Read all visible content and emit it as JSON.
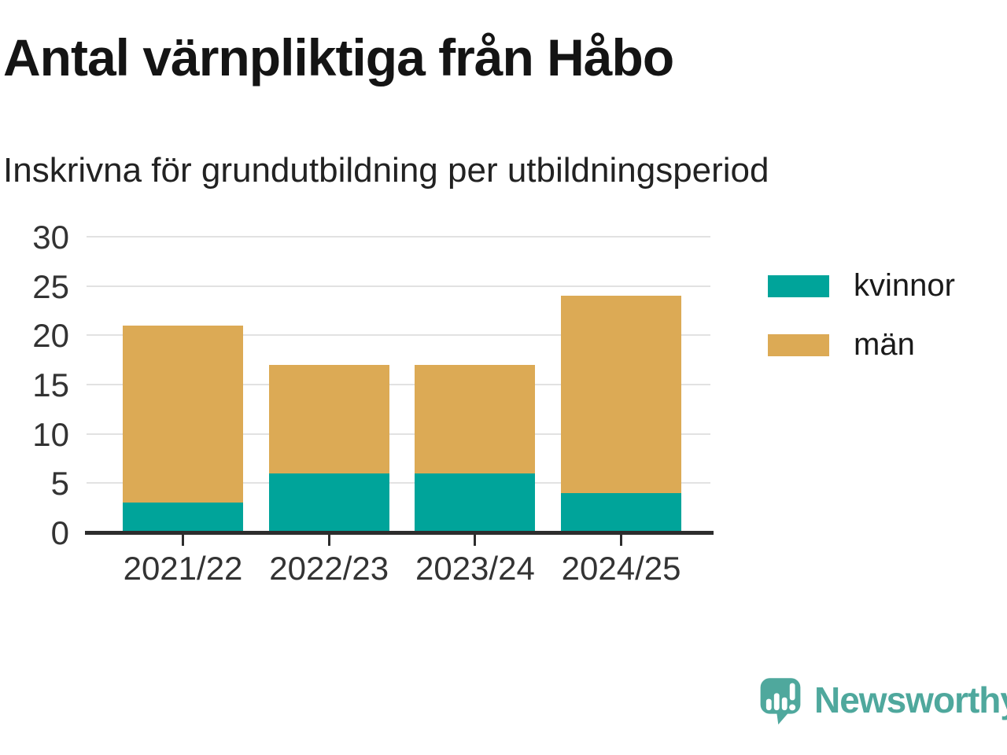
{
  "header": {
    "title": "Antal värnpliktiga från Håbo",
    "subtitle": "Inskrivna för grundutbildning per utbildningsperiod"
  },
  "chart_data": {
    "type": "bar",
    "stacked": true,
    "title": "Antal värnpliktiga från Håbo",
    "subtitle": "Inskrivna för grundutbildning per utbildningsperiod",
    "categories": [
      "2021/22",
      "2022/23",
      "2023/24",
      "2024/25"
    ],
    "series": [
      {
        "name": "kvinnor",
        "color": "#00a49a",
        "values": [
          3,
          6,
          6,
          4
        ]
      },
      {
        "name": "män",
        "color": "#dcaa55",
        "values": [
          18,
          11,
          11,
          20
        ]
      }
    ],
    "xlabel": "",
    "ylabel": "",
    "ylim": [
      0,
      30
    ],
    "yticks": [
      0,
      5,
      10,
      15,
      20,
      25,
      30
    ],
    "grid": true,
    "legend_position": "right"
  },
  "branding": {
    "logo_text": "Newsworthy",
    "logo_color": "#4fa89d"
  },
  "style_colors": {
    "gridline": "#e2e2e2",
    "axis": "#2d2d2d",
    "tick_text": "#333333",
    "legend_text": "#1a1a1a"
  }
}
